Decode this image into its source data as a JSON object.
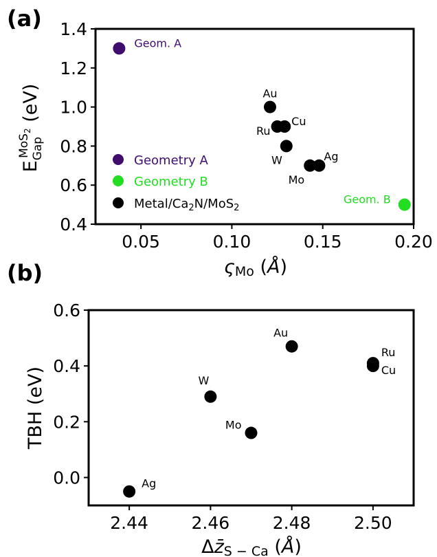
{
  "chart_data": [
    {
      "panel": "(a)",
      "type": "scatter",
      "title": "",
      "xlabel": "ς_Mo (Å)",
      "ylabel": "E_Gap^MoS2 (eV)",
      "xlim": [
        0.025,
        0.2
      ],
      "ylim": [
        0.4,
        1.4
      ],
      "xticks": [
        "0.05",
        "0.10",
        "0.15",
        "0.20"
      ],
      "xtick_values": [
        0.05,
        0.1,
        0.15,
        0.2
      ],
      "yticks": [
        "0.4",
        "0.6",
        "0.8",
        "1.0",
        "1.2",
        "1.4"
      ],
      "ytick_values": [
        0.4,
        0.6,
        0.8,
        1.0,
        1.2,
        1.4
      ],
      "grid": false,
      "legend_position": "lower-left",
      "series": [
        {
          "name": "Geometry A",
          "color": "#3f0d6e",
          "points": [
            {
              "x": 0.038,
              "y": 1.3,
              "label": "Geom. A"
            }
          ]
        },
        {
          "name": "Geometry B",
          "color": "#22dd22",
          "points": [
            {
              "x": 0.195,
              "y": 0.5,
              "label": "Geom. B"
            }
          ]
        },
        {
          "name": "Metal/Ca2N/MoS2",
          "color": "#000000",
          "points": [
            {
              "x": 0.121,
              "y": 1.0,
              "label": "Au"
            },
            {
              "x": 0.125,
              "y": 0.9,
              "label": "Ru"
            },
            {
              "x": 0.129,
              "y": 0.9,
              "label": "Cu"
            },
            {
              "x": 0.13,
              "y": 0.8,
              "label": "W"
            },
            {
              "x": 0.143,
              "y": 0.7,
              "label": "Mo"
            },
            {
              "x": 0.148,
              "y": 0.7,
              "label": "Ag"
            }
          ]
        }
      ]
    },
    {
      "panel": "(b)",
      "type": "scatter",
      "title": "",
      "xlabel": "Δz̄_S−Ca (Å)",
      "ylabel": "TBH (eV)",
      "xlim": [
        2.43,
        2.51
      ],
      "ylim": [
        -0.1,
        0.6
      ],
      "xticks": [
        "2.44",
        "2.46",
        "2.48",
        "2.50"
      ],
      "xtick_values": [
        2.44,
        2.46,
        2.48,
        2.5
      ],
      "yticks": [
        "0.0",
        "0.2",
        "0.4",
        "0.6"
      ],
      "ytick_values": [
        0.0,
        0.2,
        0.4,
        0.6
      ],
      "grid": false,
      "series": [
        {
          "name": "",
          "color": "#000000",
          "points": [
            {
              "x": 2.44,
              "y": -0.05,
              "label": "Ag"
            },
            {
              "x": 2.46,
              "y": 0.29,
              "label": "W"
            },
            {
              "x": 2.47,
              "y": 0.16,
              "label": "Mo"
            },
            {
              "x": 2.48,
              "y": 0.47,
              "label": "Au"
            },
            {
              "x": 2.5,
              "y": 0.41,
              "label": "Ru"
            },
            {
              "x": 2.5,
              "y": 0.4,
              "label": "Cu"
            }
          ]
        }
      ]
    }
  ]
}
